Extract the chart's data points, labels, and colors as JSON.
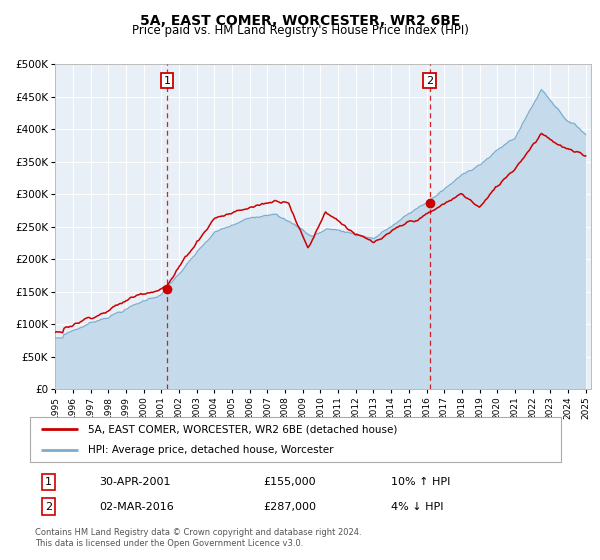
{
  "title": "5A, EAST COMER, WORCESTER, WR2 6BE",
  "subtitle": "Price paid vs. HM Land Registry's House Price Index (HPI)",
  "legend_line1": "5A, EAST COMER, WORCESTER, WR2 6BE (detached house)",
  "legend_line2": "HPI: Average price, detached house, Worcester",
  "annotation1_date": "30-APR-2001",
  "annotation1_price": "£155,000",
  "annotation1_hpi": "10% ↑ HPI",
  "annotation2_date": "02-MAR-2016",
  "annotation2_price": "£287,000",
  "annotation2_hpi": "4% ↓ HPI",
  "footnote1": "Contains HM Land Registry data © Crown copyright and database right 2024.",
  "footnote2": "This data is licensed under the Open Government Licence v3.0.",
  "red_line_color": "#cc0000",
  "blue_line_color": "#7aadcf",
  "blue_fill_color": "#c5daea",
  "plot_bg": "#e8eff6",
  "vline_color": "#cc0000",
  "marker_color": "#cc0000",
  "annotation_box_color": "#cc0000",
  "ylim": [
    0,
    500000
  ],
  "yticks": [
    0,
    50000,
    100000,
    150000,
    200000,
    250000,
    300000,
    350000,
    400000,
    450000,
    500000
  ],
  "purchase1_year": 2001.33,
  "purchase1_value": 155000,
  "purchase2_year": 2016.17,
  "purchase2_value": 287000
}
